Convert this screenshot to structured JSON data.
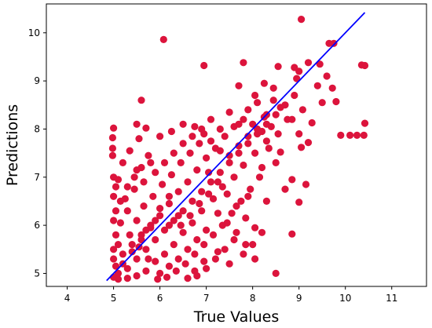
{
  "chart_data": {
    "type": "scatter",
    "title": "",
    "xlabel": "True Values",
    "ylabel": "Predictions",
    "xlim": [
      3.55,
      11.75
    ],
    "ylim": [
      4.73,
      10.6
    ],
    "xticks": [
      4,
      5,
      6,
      7,
      8,
      9,
      10,
      11
    ],
    "yticks": [
      5,
      6,
      7,
      8,
      9,
      10
    ],
    "grid": false,
    "colors": {
      "points": "#DC143C",
      "fit_line": "#0000FF"
    },
    "fit_line": {
      "x": [
        4.85,
        10.42
      ],
      "y": [
        4.85,
        10.42
      ]
    },
    "series": [
      {
        "values": [
          [
            10.42,
            9.32
          ],
          [
            10.35,
            9.33
          ],
          [
            10.42,
            8.12
          ],
          [
            10.4,
            7.87
          ],
          [
            10.25,
            7.87
          ],
          [
            10.1,
            7.87
          ],
          [
            9.9,
            7.87
          ],
          [
            9.05,
            10.28
          ],
          [
            6.08,
            9.86
          ],
          [
            9.75,
            9.78
          ],
          [
            9.65,
            9.78
          ],
          [
            9.2,
            9.38
          ],
          [
            9.45,
            9.35
          ],
          [
            7.8,
            9.38
          ],
          [
            6.95,
            9.32
          ],
          [
            8.55,
            9.3
          ],
          [
            8.9,
            9.28
          ],
          [
            9.0,
            9.2
          ],
          [
            8.95,
            9.05
          ],
          [
            9.6,
            9.1
          ],
          [
            9.72,
            8.85
          ],
          [
            9.4,
            8.9
          ],
          [
            9.8,
            8.57
          ],
          [
            9.5,
            8.55
          ],
          [
            8.05,
            8.7
          ],
          [
            7.7,
            8.9
          ],
          [
            8.25,
            8.95
          ],
          [
            8.45,
            8.85
          ],
          [
            9.08,
            8.4
          ],
          [
            9.28,
            8.13
          ],
          [
            8.85,
            8.2
          ],
          [
            9.0,
            7.9
          ],
          [
            9.2,
            7.72
          ],
          [
            8.6,
            7.52
          ],
          [
            9.05,
            7.62
          ],
          [
            8.2,
            7.2
          ],
          [
            8.85,
            6.95
          ],
          [
            9.15,
            6.85
          ],
          [
            8.7,
            6.75
          ],
          [
            9.0,
            6.48
          ],
          [
            8.3,
            6.5
          ],
          [
            7.9,
            6.6
          ],
          [
            8.85,
            5.82
          ],
          [
            8.5,
            5.0
          ],
          [
            5.6,
            8.6
          ],
          [
            5.0,
            8.02
          ],
          [
            5.5,
            8.1
          ],
          [
            5.7,
            8.02
          ],
          [
            4.98,
            7.82
          ],
          [
            4.98,
            7.6
          ],
          [
            4.98,
            7.45
          ],
          [
            5.0,
            7.0
          ],
          [
            5.1,
            6.95
          ],
          [
            5.2,
            7.3
          ],
          [
            5.35,
            7.55
          ],
          [
            5.5,
            7.15
          ],
          [
            5.65,
            6.9
          ],
          [
            5.75,
            7.45
          ],
          [
            5.55,
            7.8
          ],
          [
            5.8,
            7.3
          ],
          [
            6.0,
            7.85
          ],
          [
            6.25,
            7.95
          ],
          [
            6.5,
            8.1
          ],
          [
            6.75,
            8.05
          ],
          [
            6.95,
            7.9
          ],
          [
            7.1,
            8.2
          ],
          [
            7.3,
            8.0
          ],
          [
            7.5,
            8.35
          ],
          [
            7.7,
            8.1
          ],
          [
            7.9,
            8.4
          ],
          [
            8.1,
            8.55
          ],
          [
            8.25,
            8.25
          ],
          [
            8.4,
            8.05
          ],
          [
            8.6,
            8.45
          ],
          [
            8.75,
            8.2
          ],
          [
            8.55,
            7.9
          ],
          [
            8.3,
            7.75
          ],
          [
            8.05,
            7.5
          ],
          [
            7.8,
            7.25
          ],
          [
            7.6,
            7.0
          ],
          [
            7.35,
            6.8
          ],
          [
            7.15,
            6.55
          ],
          [
            6.9,
            6.3
          ],
          [
            6.7,
            6.05
          ],
          [
            6.5,
            5.85
          ],
          [
            6.3,
            5.6
          ],
          [
            6.1,
            5.4
          ],
          [
            5.9,
            5.25
          ],
          [
            5.7,
            5.05
          ],
          [
            5.5,
            4.95
          ],
          [
            5.3,
            4.9
          ],
          [
            5.1,
            4.88
          ],
          [
            5.0,
            4.92
          ],
          [
            5.2,
            5.2
          ],
          [
            5.4,
            5.45
          ],
          [
            5.6,
            5.7
          ],
          [
            5.8,
            5.95
          ],
          [
            6.0,
            6.2
          ],
          [
            6.2,
            6.45
          ],
          [
            6.4,
            6.7
          ],
          [
            6.6,
            6.9
          ],
          [
            6.8,
            7.15
          ],
          [
            7.0,
            7.4
          ],
          [
            7.2,
            7.6
          ],
          [
            7.4,
            7.85
          ],
          [
            7.6,
            8.05
          ],
          [
            7.8,
            8.2
          ],
          [
            8.0,
            8.1
          ],
          [
            8.2,
            7.95
          ],
          [
            8.35,
            7.6
          ],
          [
            8.5,
            7.3
          ],
          [
            8.15,
            7.0
          ],
          [
            7.95,
            6.75
          ],
          [
            7.75,
            6.5
          ],
          [
            7.55,
            6.25
          ],
          [
            7.35,
            6.0
          ],
          [
            7.15,
            5.8
          ],
          [
            6.95,
            5.6
          ],
          [
            6.75,
            5.4
          ],
          [
            6.55,
            5.2
          ],
          [
            6.35,
            5.05
          ],
          [
            6.15,
            4.92
          ],
          [
            5.95,
            4.88
          ],
          [
            5.75,
            5.3
          ],
          [
            5.55,
            5.55
          ],
          [
            5.35,
            5.8
          ],
          [
            5.15,
            6.05
          ],
          [
            5.05,
            6.3
          ],
          [
            5.25,
            6.55
          ],
          [
            5.45,
            6.75
          ],
          [
            5.65,
            6.4
          ],
          [
            5.85,
            6.6
          ],
          [
            6.05,
            6.85
          ],
          [
            6.25,
            7.05
          ],
          [
            6.45,
            7.3
          ],
          [
            6.65,
            7.5
          ],
          [
            6.85,
            7.7
          ],
          [
            7.05,
            7.1
          ],
          [
            7.25,
            6.9
          ],
          [
            7.45,
            6.65
          ],
          [
            7.65,
            6.4
          ],
          [
            7.85,
            6.15
          ],
          [
            8.05,
            5.95
          ],
          [
            7.6,
            5.7
          ],
          [
            7.4,
            5.5
          ],
          [
            7.2,
            5.3
          ],
          [
            7.0,
            5.1
          ],
          [
            6.8,
            4.95
          ],
          [
            6.6,
            4.9
          ],
          [
            7.5,
            5.2
          ],
          [
            7.8,
            5.4
          ],
          [
            8.0,
            5.6
          ],
          [
            8.2,
            5.85
          ],
          [
            6.2,
            6.0
          ],
          [
            6.4,
            6.2
          ],
          [
            5.9,
            6.1
          ],
          [
            5.7,
            5.9
          ],
          [
            5.5,
            6.1
          ],
          [
            5.3,
            6.3
          ],
          [
            5.1,
            5.6
          ],
          [
            5.0,
            5.3
          ],
          [
            5.1,
            5.0
          ],
          [
            5.3,
            5.1
          ],
          [
            5.5,
            5.3
          ],
          [
            5.7,
            5.5
          ],
          [
            5.9,
            5.7
          ],
          [
            6.1,
            5.9
          ],
          [
            6.3,
            6.1
          ],
          [
            6.5,
            6.3
          ],
          [
            6.7,
            6.5
          ],
          [
            6.9,
            6.7
          ],
          [
            7.1,
            6.9
          ],
          [
            7.3,
            7.1
          ],
          [
            7.5,
            7.3
          ],
          [
            7.7,
            7.5
          ],
          [
            7.9,
            7.7
          ],
          [
            8.1,
            7.9
          ],
          [
            8.3,
            8.1
          ],
          [
            8.5,
            8.3
          ],
          [
            8.7,
            8.5
          ],
          [
            8.9,
            8.7
          ],
          [
            6.0,
            5.0
          ],
          [
            6.2,
            5.15
          ],
          [
            6.4,
            5.3
          ],
          [
            6.6,
            5.5
          ],
          [
            6.8,
            5.7
          ],
          [
            7.0,
            5.9
          ],
          [
            5.2,
            5.4
          ],
          [
            5.4,
            5.6
          ],
          [
            5.6,
            5.8
          ],
          [
            5.8,
            6.0
          ],
          [
            6.0,
            6.35
          ],
          [
            6.2,
            6.6
          ],
          [
            5.15,
            6.5
          ],
          [
            5.3,
            6.8
          ],
          [
            5.45,
            7.0
          ],
          [
            5.6,
            7.2
          ],
          [
            5.9,
            7.1
          ],
          [
            6.1,
            7.3
          ],
          [
            6.3,
            7.5
          ],
          [
            6.5,
            7.7
          ],
          [
            6.7,
            7.85
          ],
          [
            6.9,
            8.0
          ],
          [
            7.1,
            7.75
          ],
          [
            7.3,
            7.55
          ],
          [
            7.5,
            7.45
          ],
          [
            7.7,
            7.65
          ],
          [
            7.9,
            7.85
          ],
          [
            8.1,
            8.0
          ],
          [
            8.3,
            8.3
          ],
          [
            8.45,
            8.6
          ],
          [
            6.45,
            6.0
          ],
          [
            6.65,
            6.2
          ],
          [
            6.85,
            6.45
          ],
          [
            7.05,
            6.65
          ],
          [
            7.25,
            6.25
          ],
          [
            7.45,
            6.05
          ],
          [
            7.65,
            5.85
          ],
          [
            7.85,
            5.6
          ],
          [
            8.05,
            5.3
          ],
          [
            7.25,
            5.45
          ],
          [
            6.95,
            5.25
          ],
          [
            6.75,
            5.05
          ],
          [
            5.05,
            5.8
          ],
          [
            5.0,
            6.1
          ],
          [
            5.0,
            6.6
          ],
          [
            5.05,
            6.8
          ],
          [
            5.0,
            5.5
          ],
          [
            5.05,
            5.15
          ]
        ]
      }
    ]
  }
}
